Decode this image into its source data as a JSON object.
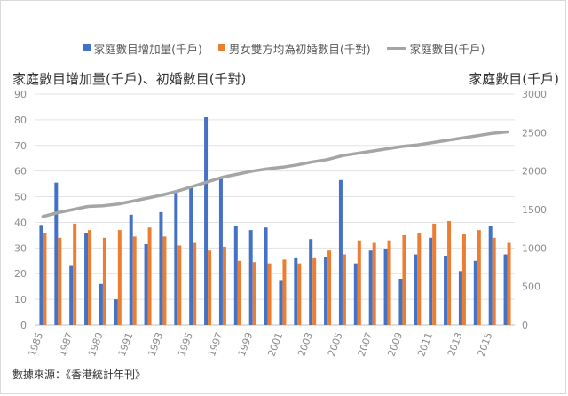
{
  "source_note": "數據來源：《香港統計年刊》",
  "chart_data": {
    "type": "bar",
    "title": "",
    "left_axis_title": "家庭數目增加量(千戶)、初婚數目(千對)",
    "right_axis_title": "家庭數目(千戶)",
    "x": [
      1985,
      1986,
      1987,
      1988,
      1989,
      1990,
      1991,
      1992,
      1993,
      1994,
      1995,
      1996,
      1997,
      1998,
      1999,
      2000,
      2001,
      2002,
      2003,
      2004,
      2005,
      2006,
      2007,
      2008,
      2009,
      2010,
      2011,
      2012,
      2013,
      2014,
      2015,
      2016
    ],
    "x_tick_labels": [
      "1985",
      "1987",
      "1989",
      "1991",
      "1993",
      "1995",
      "1997",
      "1999",
      "2001",
      "2003",
      "2005",
      "2007",
      "2009",
      "2011",
      "2013",
      "2015"
    ],
    "ylim_left": [
      0,
      90
    ],
    "yticks_left": [
      0,
      10,
      20,
      30,
      40,
      50,
      60,
      70,
      80,
      90
    ],
    "ylim_right": [
      0,
      3000
    ],
    "yticks_right": [
      0,
      500,
      1000,
      1500,
      2000,
      2500,
      3000
    ],
    "legend_position": "top",
    "grid": "horizontal",
    "series": [
      {
        "name": "家庭數目增加量(千戶)",
        "kind": "bar",
        "axis": "left",
        "color": "#4472c4",
        "values": [
          39,
          55.5,
          23,
          36,
          16,
          10,
          43,
          31.5,
          44,
          51.5,
          53.5,
          81,
          57.5,
          38.5,
          37,
          38,
          17.5,
          26,
          33.5,
          26.5,
          56.5,
          24,
          29,
          29.5,
          18,
          27.5,
          34,
          27,
          21,
          25,
          38.5,
          27.5
        ]
      },
      {
        "name": "男女雙方均為初婚數目(千對)",
        "kind": "bar",
        "axis": "left",
        "color": "#ed7d31",
        "values": [
          36,
          34,
          39.5,
          37,
          34,
          37,
          34.5,
          38,
          34.5,
          31,
          32,
          29,
          30.5,
          25,
          24.5,
          24,
          25.5,
          24,
          26,
          29,
          27.5,
          33,
          32,
          33,
          35,
          36,
          39.5,
          40.5,
          35.5,
          37,
          34,
          32
        ]
      },
      {
        "name": "家庭數目(千戶)",
        "kind": "line",
        "axis": "right",
        "color": "#a5a5a5",
        "values": [
          1410,
          1460,
          1500,
          1540,
          1550,
          1570,
          1610,
          1650,
          1690,
          1740,
          1800,
          1860,
          1920,
          1960,
          2000,
          2030,
          2050,
          2080,
          2120,
          2150,
          2200,
          2230,
          2260,
          2290,
          2320,
          2340,
          2370,
          2400,
          2430,
          2460,
          2490,
          2510
        ]
      }
    ]
  }
}
